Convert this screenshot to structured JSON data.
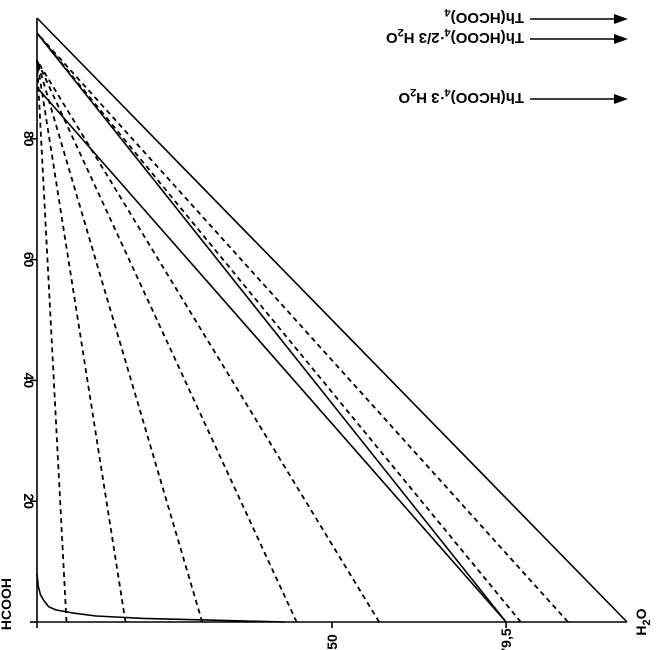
{
  "chart_data": {
    "type": "line",
    "title": "",
    "vertices": {
      "acid": "HCOOH",
      "water_prefix": "H",
      "water_sub": "2",
      "water_suffix": "O"
    },
    "x_axis": {
      "ticks": [
        0,
        20,
        40,
        60,
        80
      ],
      "tick_labels": [
        "20",
        "40",
        "60",
        "80"
      ],
      "range": [
        0,
        100
      ]
    },
    "y_axis": {
      "ticks": [
        0,
        50,
        79.5
      ],
      "tick_labels": [
        "50",
        "79,5"
      ],
      "range": [
        0,
        100
      ]
    },
    "annotations": [
      {
        "id": "th4",
        "prefix": "Th(HCOO)",
        "sub": "4",
        "suffix": ""
      },
      {
        "id": "th4_23",
        "prefix": "Th(HCOO)",
        "sub": "4",
        "suffix": "·2/3 H",
        "sub2": "2",
        "suffix2": "O"
      },
      {
        "id": "th4_3",
        "prefix": "Th(HCOO)",
        "sub": "4",
        "suffix": "·3 H",
        "sub2": "2",
        "suffix2": "O"
      }
    ],
    "solid_lines": [
      {
        "from": [
          0,
          100
        ],
        "to": [
          100,
          0
        ]
      },
      {
        "from": [
          0,
          79.5
        ],
        "to": [
          97.5,
          0
        ]
      },
      {
        "from": [
          0,
          79.5
        ],
        "to": [
          88.5,
          0
        ]
      }
    ],
    "dashed_lines": [
      {
        "from": [
          0,
          90
        ],
        "to": [
          97.5,
          0
        ]
      },
      {
        "from": [
          0,
          82
        ],
        "to": [
          97.5,
          0
        ]
      },
      {
        "from": [
          0,
          58
        ],
        "to": [
          93,
          0
        ]
      },
      {
        "from": [
          0,
          44
        ],
        "to": [
          93,
          0
        ]
      },
      {
        "from": [
          0,
          28
        ],
        "to": [
          93,
          0
        ]
      },
      {
        "from": [
          0,
          15
        ],
        "to": [
          93,
          0
        ]
      },
      {
        "from": [
          0,
          5
        ],
        "to": [
          93,
          0
        ]
      }
    ],
    "curve": [
      [
        0,
        42
      ],
      [
        0.3,
        30
      ],
      [
        0.6,
        18
      ],
      [
        1.0,
        10
      ],
      [
        1.5,
        6
      ],
      [
        2.0,
        3.2
      ],
      [
        2.5,
        2.0
      ],
      [
        3.5,
        1.2
      ],
      [
        4.5,
        0.6
      ],
      [
        6.0,
        0.2
      ],
      [
        8.0,
        0
      ]
    ]
  }
}
